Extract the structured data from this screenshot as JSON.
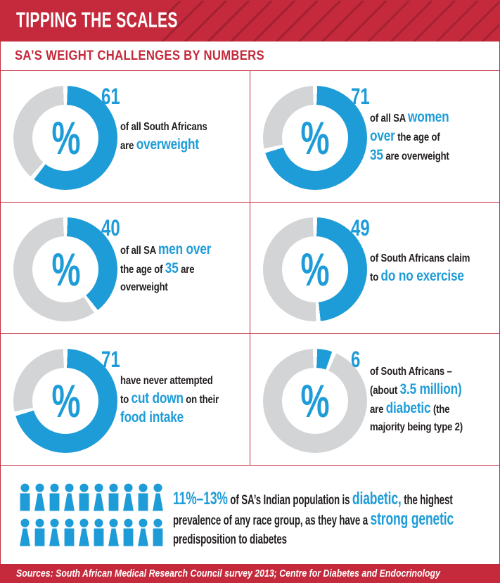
{
  "colors": {
    "red": "#C42A3B",
    "red_stripe": "#A32133",
    "blue": "#1E9CD8",
    "gray": "#D2D4D6",
    "ink": "#221E1F"
  },
  "header": {
    "title": "TIPPING THE SCALES"
  },
  "subtitle": "SA’S WEIGHT CHALLENGES BY NUMBERS",
  "donut_center_symbol": "%",
  "panels": [
    {
      "value": 61,
      "display": "61",
      "caption": [
        {
          "text": "of all South Africans\nare ",
          "hl": false
        },
        {
          "text": "overweight",
          "hl": true
        }
      ]
    },
    {
      "value": 71,
      "display": "71",
      "caption": [
        {
          "text": "of all SA ",
          "hl": false
        },
        {
          "text": "women\nover",
          "hl": true
        },
        {
          "text": " the age of\n",
          "hl": false
        },
        {
          "text": "35",
          "hl": true
        },
        {
          "text": " are overweight",
          "hl": false
        }
      ]
    },
    {
      "value": 40,
      "display": "40",
      "caption": [
        {
          "text": "of all SA ",
          "hl": false
        },
        {
          "text": "men over",
          "hl": true
        },
        {
          "text": "\nthe age of ",
          "hl": false
        },
        {
          "text": "35",
          "hl": true
        },
        {
          "text": " are\noverweight",
          "hl": false
        }
      ]
    },
    {
      "value": 49,
      "display": "49",
      "caption": [
        {
          "text": "of South Africans claim\nto ",
          "hl": false
        },
        {
          "text": "do no exercise",
          "hl": true
        }
      ]
    },
    {
      "value": 71,
      "display": "71",
      "caption": [
        {
          "text": "have never attempted\nto ",
          "hl": false
        },
        {
          "text": "cut down",
          "hl": true
        },
        {
          "text": " on their\n",
          "hl": false
        },
        {
          "text": "food intake",
          "hl": true
        }
      ]
    },
    {
      "value": 6,
      "display": "6",
      "caption": [
        {
          "text": "of South Africans –\n(about ",
          "hl": false
        },
        {
          "text": "3.5 million)",
          "hl": true
        },
        {
          "text": "\nare ",
          "hl": false
        },
        {
          "text": "diabetic",
          "hl": true
        },
        {
          "text": " (the\nmajority being type 2)",
          "hl": false
        }
      ]
    }
  ],
  "pictogram": {
    "rows": [
      [
        "male",
        "female",
        "male",
        "female",
        "male",
        "female",
        "male",
        "female",
        "male",
        "female"
      ],
      [
        "female",
        "male",
        "female",
        "male",
        "female",
        "male",
        "female",
        "male",
        "female",
        "male"
      ]
    ],
    "caption": [
      {
        "text": "11%–13%",
        "hl": true
      },
      {
        "text": " of SA’s Indian population is ",
        "hl": false
      },
      {
        "text": "diabetic,",
        "hl": true
      },
      {
        "text": " the highest\nprevalence of any race group, as they have a ",
        "hl": false
      },
      {
        "text": "strong genetic",
        "hl": true
      },
      {
        "text": "\npredisposition to diabetes",
        "hl": false
      }
    ]
  },
  "footer": {
    "sources": "Sources: South African Medical Research Council survey 2013; Centre for Diabetes and Endocrinology"
  },
  "chart_data": [
    {
      "type": "pie",
      "variant": "donut",
      "value": 61,
      "unit": "%",
      "title": "of all South Africans are overweight",
      "filled_color": "#1E9CD8",
      "empty_color": "#D2D4D6",
      "start": "12 o'clock",
      "direction": "clockwise"
    },
    {
      "type": "pie",
      "variant": "donut",
      "value": 71,
      "unit": "%",
      "title": "of all SA women over the age of 35 are overweight",
      "filled_color": "#1E9CD8",
      "empty_color": "#D2D4D6",
      "start": "12 o'clock",
      "direction": "clockwise"
    },
    {
      "type": "pie",
      "variant": "donut",
      "value": 40,
      "unit": "%",
      "title": "of all SA men over the age of 35 are overweight",
      "filled_color": "#1E9CD8",
      "empty_color": "#D2D4D6",
      "start": "12 o'clock",
      "direction": "clockwise"
    },
    {
      "type": "pie",
      "variant": "donut",
      "value": 49,
      "unit": "%",
      "title": "of South Africans claim to do no exercise",
      "filled_color": "#1E9CD8",
      "empty_color": "#D2D4D6",
      "start": "12 o'clock",
      "direction": "clockwise"
    },
    {
      "type": "pie",
      "variant": "donut",
      "value": 71,
      "unit": "%",
      "title": "have never attempted to cut down on their food intake",
      "filled_color": "#1E9CD8",
      "empty_color": "#D2D4D6",
      "start": "12 o'clock",
      "direction": "clockwise"
    },
    {
      "type": "pie",
      "variant": "donut",
      "value": 6,
      "unit": "%",
      "title": "of South Africans – (about 3.5 million) are diabetic (the majority being type 2)",
      "filled_color": "#1E9CD8",
      "empty_color": "#D2D4D6",
      "start": "12 o'clock",
      "direction": "clockwise"
    },
    {
      "type": "pictogram",
      "value_range": [
        11,
        13
      ],
      "unit": "%",
      "icon_count": 20,
      "icon_rows": 2,
      "icons_per_row": 10,
      "title": "11%–13% of SA’s Indian population is diabetic, the highest prevalence of any race group, as they have a strong genetic predisposition to diabetes"
    }
  ]
}
